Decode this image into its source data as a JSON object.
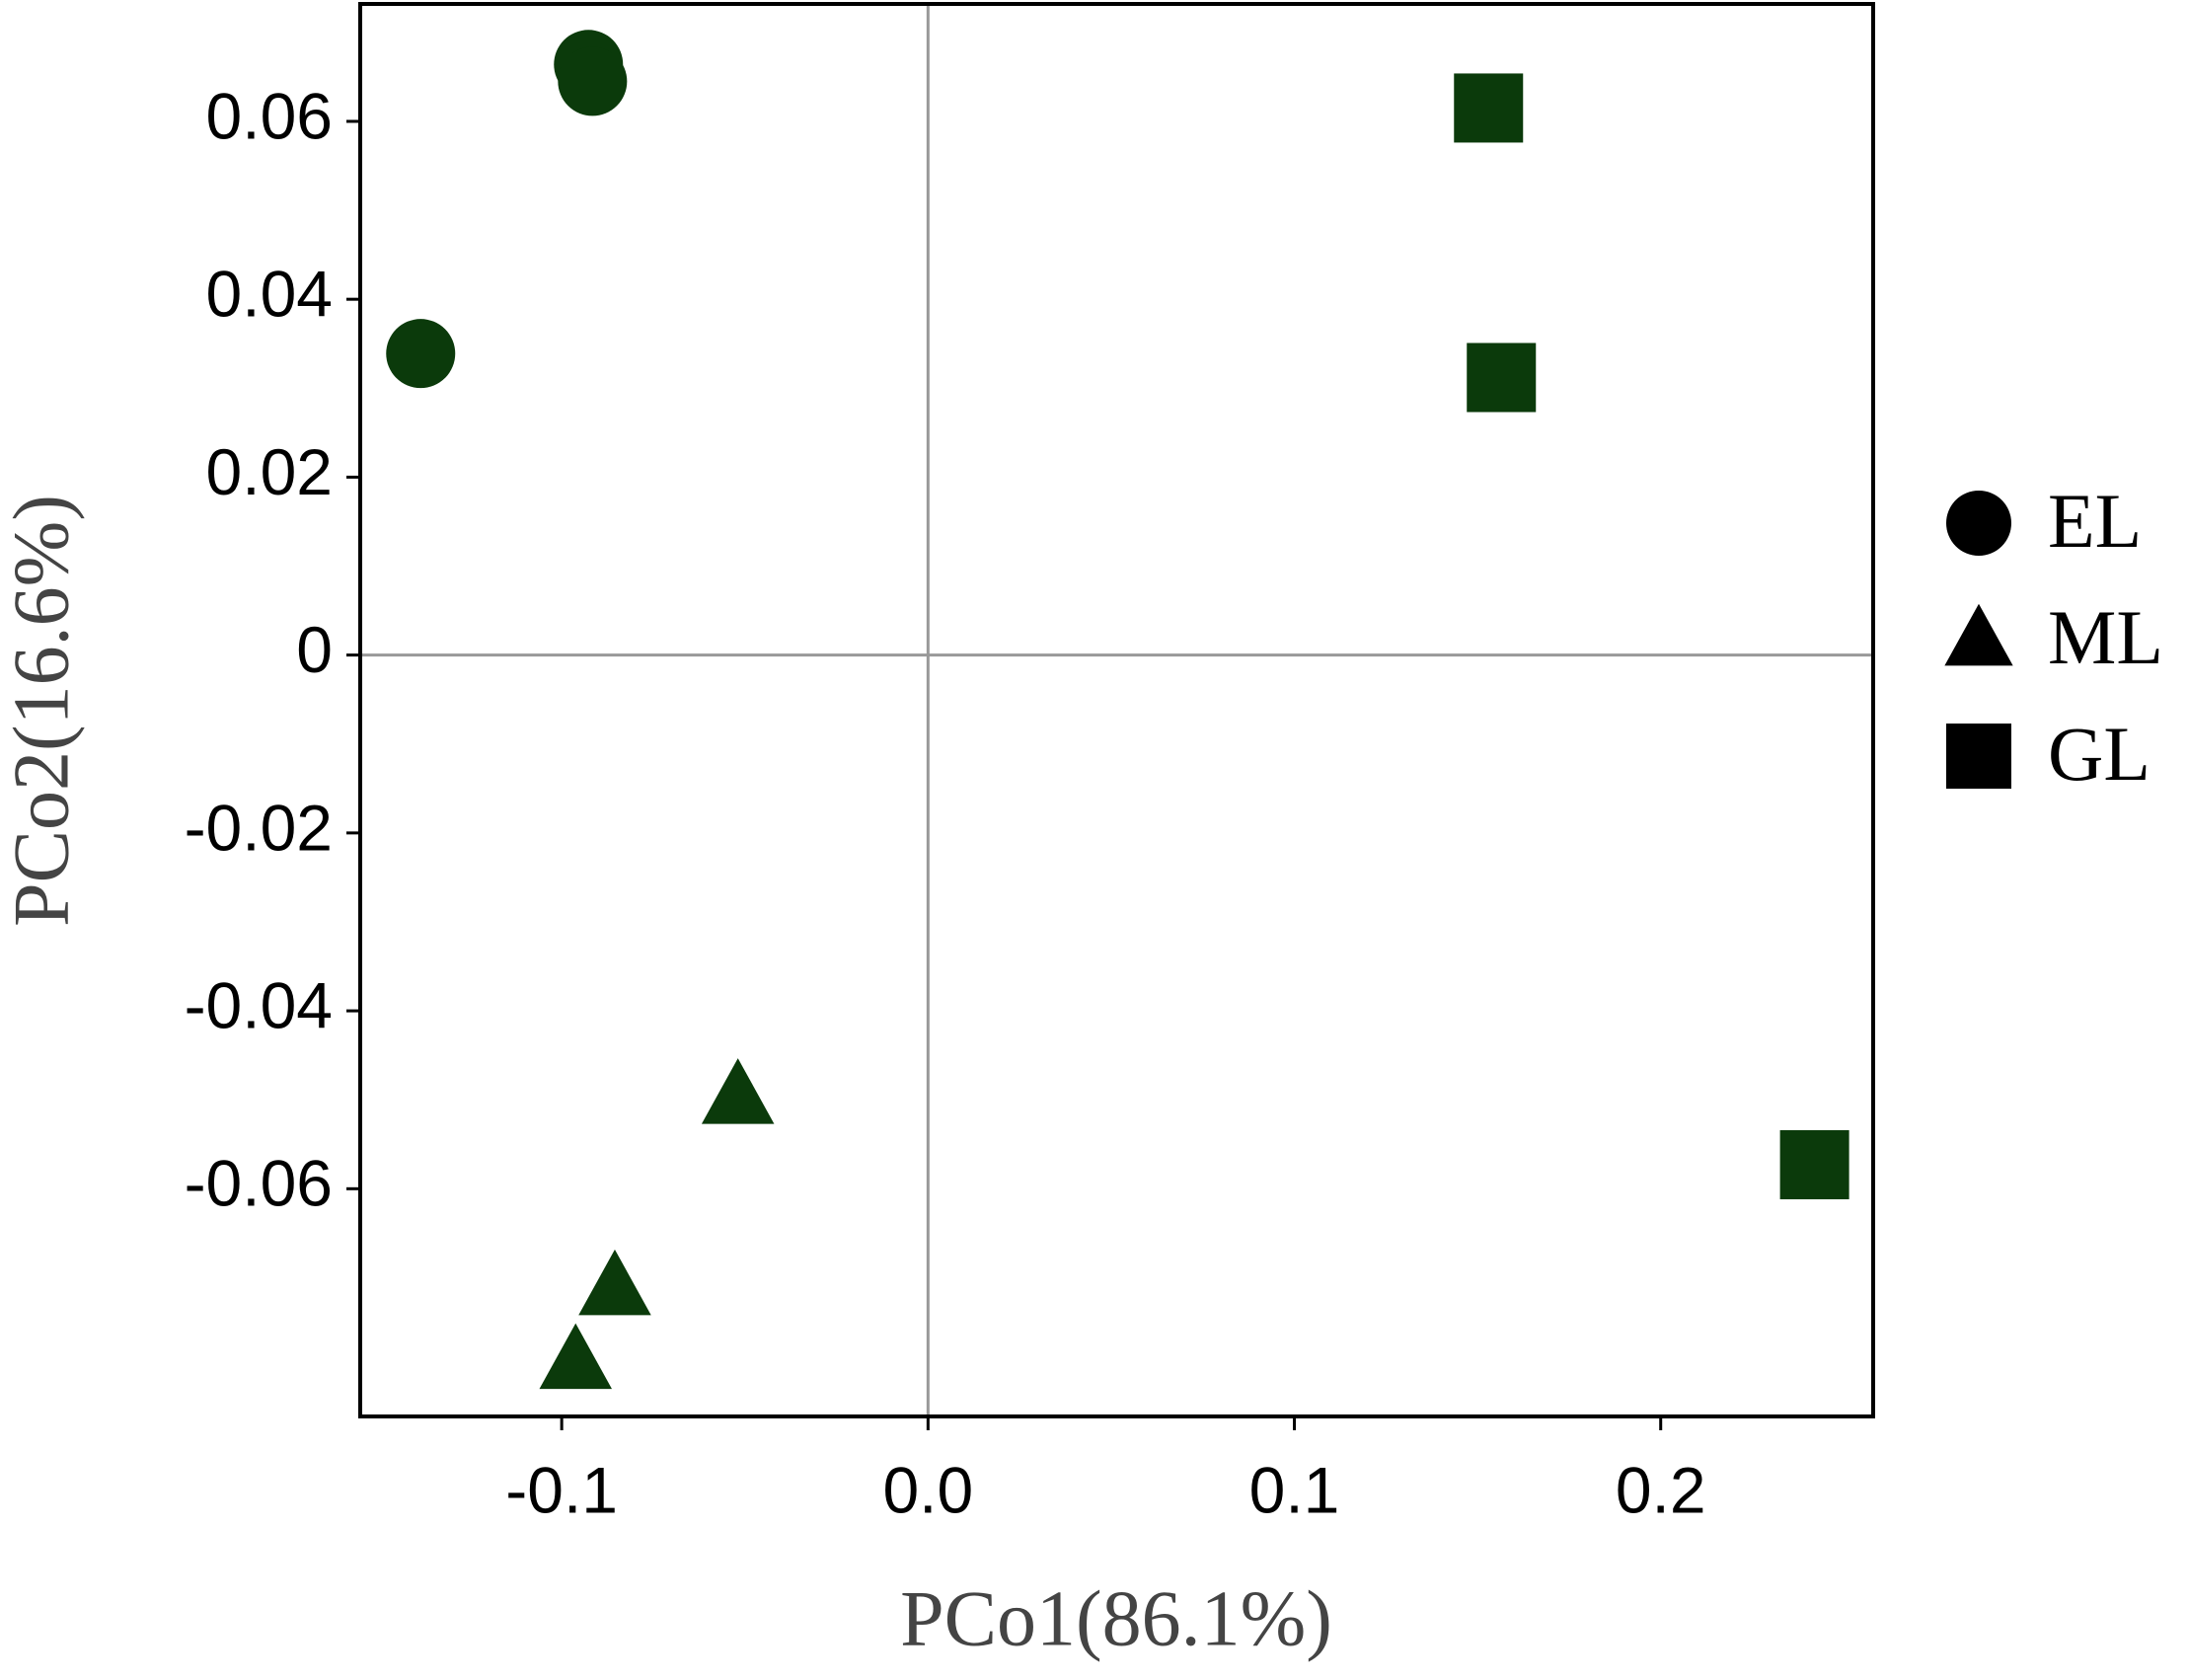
{
  "chart_data": {
    "type": "scatter",
    "x_label": "PCo1(86.1%)",
    "y_label": "PCo2(16.6%)",
    "xlim": [
      -0.155,
      0.258
    ],
    "ylim": [
      -0.0856,
      0.0732
    ],
    "xticks": [
      -0.1,
      {
        "value": 0,
        "label": "0.0"
      },
      0.1,
      0.2
    ],
    "yticks": [
      0.06,
      0.04,
      0.02,
      0,
      -0.02,
      -0.04,
      -0.06
    ],
    "zero_lines": true,
    "legend": "right",
    "series": [
      {
        "name": "EL",
        "color": "#0b3a0b",
        "marker": "circle",
        "x": [
          -0.0927,
          -0.0916,
          -0.1385
        ],
        "y": [
          0.0664,
          0.0645,
          0.0339
        ]
      },
      {
        "name": "ML",
        "color": "#0b3a0b",
        "marker": "triangle",
        "x": [
          -0.0519,
          -0.0855,
          -0.0962
        ],
        "y": [
          -0.0496,
          -0.0711,
          -0.0794
        ]
      },
      {
        "name": "GL",
        "color": "#0b3a0b",
        "marker": "square",
        "x": [
          0.153,
          0.1565,
          0.242
        ],
        "y": [
          0.0615,
          0.0312,
          -0.0573
        ]
      }
    ]
  }
}
